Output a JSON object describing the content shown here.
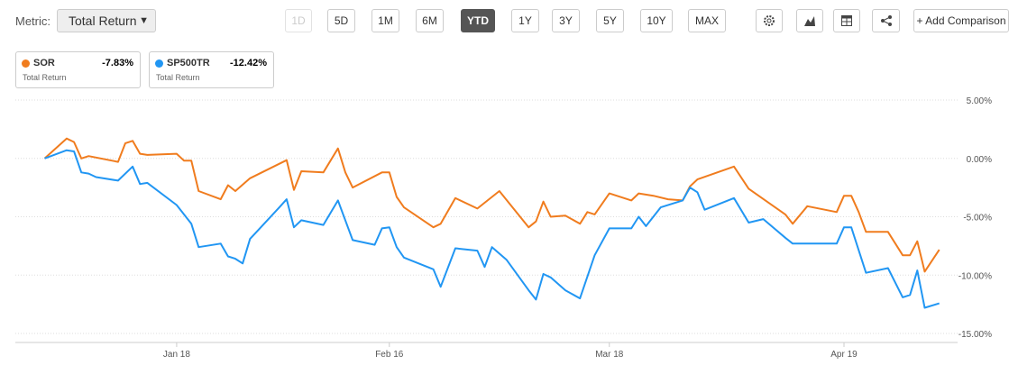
{
  "toolbar": {
    "metric_label": "Metric:",
    "metric_value": "Total Return",
    "ranges": [
      "1D",
      "5D",
      "1M",
      "6M",
      "YTD",
      "1Y",
      "3Y",
      "5Y",
      "10Y",
      "MAX"
    ],
    "add_comparison": "+ Add Comparison"
  },
  "chart_data": {
    "type": "line",
    "series": [
      {
        "name": "SOR",
        "color": "#f07c1e",
        "summary": {
          "value": -7.83,
          "label": "-7.83%"
        },
        "summary_caption": "Total Return",
        "x": [
          0,
          3,
          4,
          5,
          6,
          10,
          11,
          12,
          13,
          14,
          18,
          19,
          20,
          21,
          24,
          25,
          26,
          28,
          33,
          34,
          35,
          38,
          40,
          41,
          42,
          46,
          47,
          48,
          49,
          53,
          54,
          56,
          59,
          62,
          66,
          67,
          68,
          69,
          71,
          73,
          74,
          75,
          77,
          80,
          81,
          83,
          85,
          87,
          88,
          89,
          94,
          96,
          101,
          102,
          104,
          108,
          109,
          110,
          111,
          112,
          115,
          117,
          118,
          119,
          120,
          122
        ],
        "values": [
          0,
          1.7,
          1.4,
          0,
          0.2,
          -0.3,
          1.3,
          1.5,
          0.4,
          0.3,
          0.4,
          -0.2,
          -0.2,
          -2.8,
          -3.5,
          -2.3,
          -2.8,
          -1.7,
          -0.15,
          -2.7,
          -1.1,
          -1.2,
          0.85,
          -1.2,
          -2.5,
          -1.2,
          -1.2,
          -3.3,
          -4.2,
          -5.9,
          -5.6,
          -3.4,
          -4.3,
          -2.8,
          -5.9,
          -5.4,
          -3.7,
          -5.0,
          -4.9,
          -5.6,
          -4.6,
          -4.8,
          -3.0,
          -3.6,
          -3.0,
          -3.2,
          -3.5,
          -3.6,
          -2.4,
          -1.8,
          -0.7,
          -2.6,
          -4.8,
          -5.6,
          -4.1,
          -4.6,
          -3.2,
          -3.2,
          -4.6,
          -6.3,
          -6.3,
          -8.3,
          -8.3,
          -7.1,
          -9.7,
          -7.83
        ]
      },
      {
        "name": "SP500TR",
        "color": "#2196f3",
        "summary": {
          "value": -12.42,
          "label": "-12.42%"
        },
        "summary_caption": "Total Return",
        "x": [
          0,
          3,
          4,
          5,
          6,
          7,
          10,
          12,
          13,
          14,
          18,
          20,
          21,
          24,
          25,
          26,
          27,
          28,
          32,
          33,
          34,
          35,
          38,
          40,
          42,
          45,
          46,
          47,
          48,
          49,
          53,
          54,
          56,
          59,
          60,
          61,
          63,
          66,
          67,
          68,
          69,
          71,
          73,
          75,
          77,
          80,
          81,
          82,
          84,
          87,
          88,
          89,
          90,
          94,
          96,
          98,
          101,
          102,
          103,
          104,
          108,
          109,
          110,
          112,
          115,
          117,
          118,
          119,
          120,
          122
        ],
        "values": [
          0,
          0.7,
          0.6,
          -1.2,
          -1.3,
          -1.6,
          -1.9,
          -0.7,
          -2.2,
          -2.1,
          -4.0,
          -5.6,
          -7.6,
          -7.3,
          -8.4,
          -8.6,
          -9.0,
          -6.9,
          -4.2,
          -3.5,
          -5.9,
          -5.3,
          -5.7,
          -3.6,
          -7.0,
          -7.4,
          -6.0,
          -5.9,
          -7.6,
          -8.5,
          -9.5,
          -11.0,
          -7.7,
          -7.9,
          -9.3,
          -7.6,
          -8.7,
          -11.3,
          -12.1,
          -9.9,
          -10.2,
          -11.3,
          -12.0,
          -8.3,
          -6.0,
          -6.0,
          -5.0,
          -5.8,
          -4.2,
          -3.6,
          -2.5,
          -2.9,
          -4.4,
          -3.4,
          -5.5,
          -5.2,
          -6.8,
          -7.3,
          -7.3,
          -7.3,
          -7.3,
          -5.9,
          -5.9,
          -9.8,
          -9.4,
          -11.9,
          -11.7,
          -9.6,
          -12.8,
          -12.42
        ]
      }
    ],
    "xlim": [
      -4,
      124
    ],
    "xticks": [
      {
        "value": 18,
        "label": "Jan 18"
      },
      {
        "value": 47,
        "label": "Feb 16"
      },
      {
        "value": 77,
        "label": "Mar 18"
      },
      {
        "value": 109,
        "label": "Apr 19"
      }
    ],
    "ylim": [
      -15,
      5
    ],
    "yticks": [
      {
        "value": 5,
        "label": "5.00%"
      },
      {
        "value": 0,
        "label": "0.00%"
      },
      {
        "value": -5,
        "label": "-5.00%"
      },
      {
        "value": -10,
        "label": "-10.00%"
      },
      {
        "value": -15,
        "label": "-15.00%"
      }
    ],
    "grid": true
  }
}
